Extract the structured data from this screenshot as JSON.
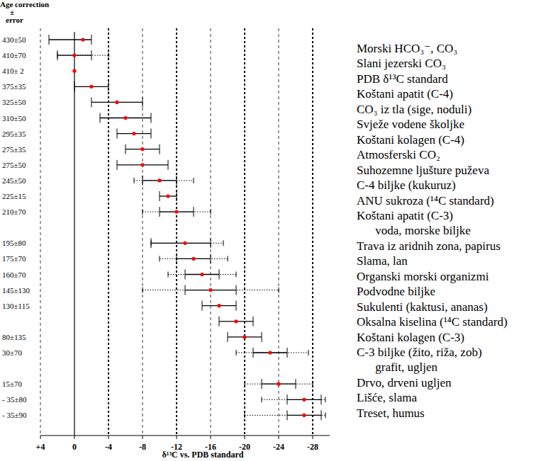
{
  "chart_data": {
    "type": "dot",
    "age_header": [
      "Age correction",
      "±",
      "error"
    ],
    "xlabel": "δ¹³C vs. PDB standard",
    "categories": [
      "Morski HCO₃⁻, CO₃",
      "Slani jezerski CO₃",
      "PDB δ¹³C standard",
      "Koštani apatit (C-4)",
      "CO₃ iz tla (sige, noduli)",
      "Svježe vodene školjke",
      "Koštani kolagen (C-4)",
      "Atmosferski CO₂",
      "Suhozemne ljušture puževa",
      "C-4 biljke (kukuruz)",
      "ANU sukroza (¹⁴C standard)",
      "Koštani apatit (C-3)\nvoda, morske biljke",
      "Trava iz aridnih zona, papirus",
      "Slama, lan",
      "Organski morski organizmi",
      "Podvodne biljke",
      "Sukulenti (kaktusi, ananas)",
      "Oksalna kiselina (¹⁴C standard)",
      "Koštani kolagen (C-3)",
      "C-3 biljke (žito, riža, zob)\ngrafit, ugljen",
      "Drvo, drveni ugljen",
      "Lišće, slama",
      "Treset, humus"
    ],
    "age_labels": [
      "430±50",
      "410±70",
      "410± 2",
      "375±35",
      "325±50",
      "310±50",
      "295±35",
      "275±35",
      "275±50",
      "245±50",
      "225±15",
      "210±70",
      "195±80",
      "175±70",
      "160±70",
      "145±130",
      "130±115",
      null,
      "80±135",
      "30±70",
      "15±70",
      "- 35±80",
      "- 35±90"
    ],
    "values": [
      -1,
      0,
      0,
      -2,
      -5,
      -6,
      -7,
      -8,
      -8,
      -10,
      -11,
      -12,
      -13,
      -14,
      -15,
      -16,
      -17,
      -19,
      -20,
      -23,
      -24,
      -27,
      -27
    ],
    "solid_ranges": [
      [
        3,
        -2
      ],
      [
        2,
        -2
      ],
      null,
      [
        0,
        -4
      ],
      [
        -2,
        -8
      ],
      [
        -3,
        -9
      ],
      [
        -5,
        -9
      ],
      [
        -6,
        -10
      ],
      [
        -5,
        -11
      ],
      [
        -8,
        -12
      ],
      [
        -10,
        -12
      ],
      [
        -10,
        -14
      ],
      [
        -9,
        -16
      ],
      [
        -12,
        -16
      ],
      [
        -13,
        -17
      ],
      [
        -13,
        -19
      ],
      [
        -15,
        -19
      ],
      [
        -17,
        -21
      ],
      [
        -18,
        -22
      ],
      [
        -21,
        -25
      ],
      [
        -22,
        -26
      ],
      [
        -25,
        -29
      ],
      [
        -25,
        -29
      ]
    ],
    "dotted_ranges": [
      null,
      [
        2,
        -4
      ],
      null,
      null,
      null,
      null,
      null,
      null,
      null,
      [
        -7,
        -14
      ],
      null,
      [
        -8,
        -16
      ],
      [
        -9,
        -17.5
      ],
      [
        -10,
        -18
      ],
      [
        -11,
        -19
      ],
      [
        -8,
        -24
      ],
      null,
      null,
      null,
      [
        -19,
        -27.5
      ],
      [
        -20,
        -28
      ],
      [
        -22,
        -29.5
      ],
      [
        -20,
        -29.5
      ]
    ],
    "color": "#ff0000",
    "xlim": [
      4,
      -30
    ],
    "xticks": [
      {
        "value": 4,
        "label": "+4"
      },
      0,
      -4,
      -8,
      -12,
      -16,
      -20,
      -24,
      -28
    ],
    "grid": true
  }
}
